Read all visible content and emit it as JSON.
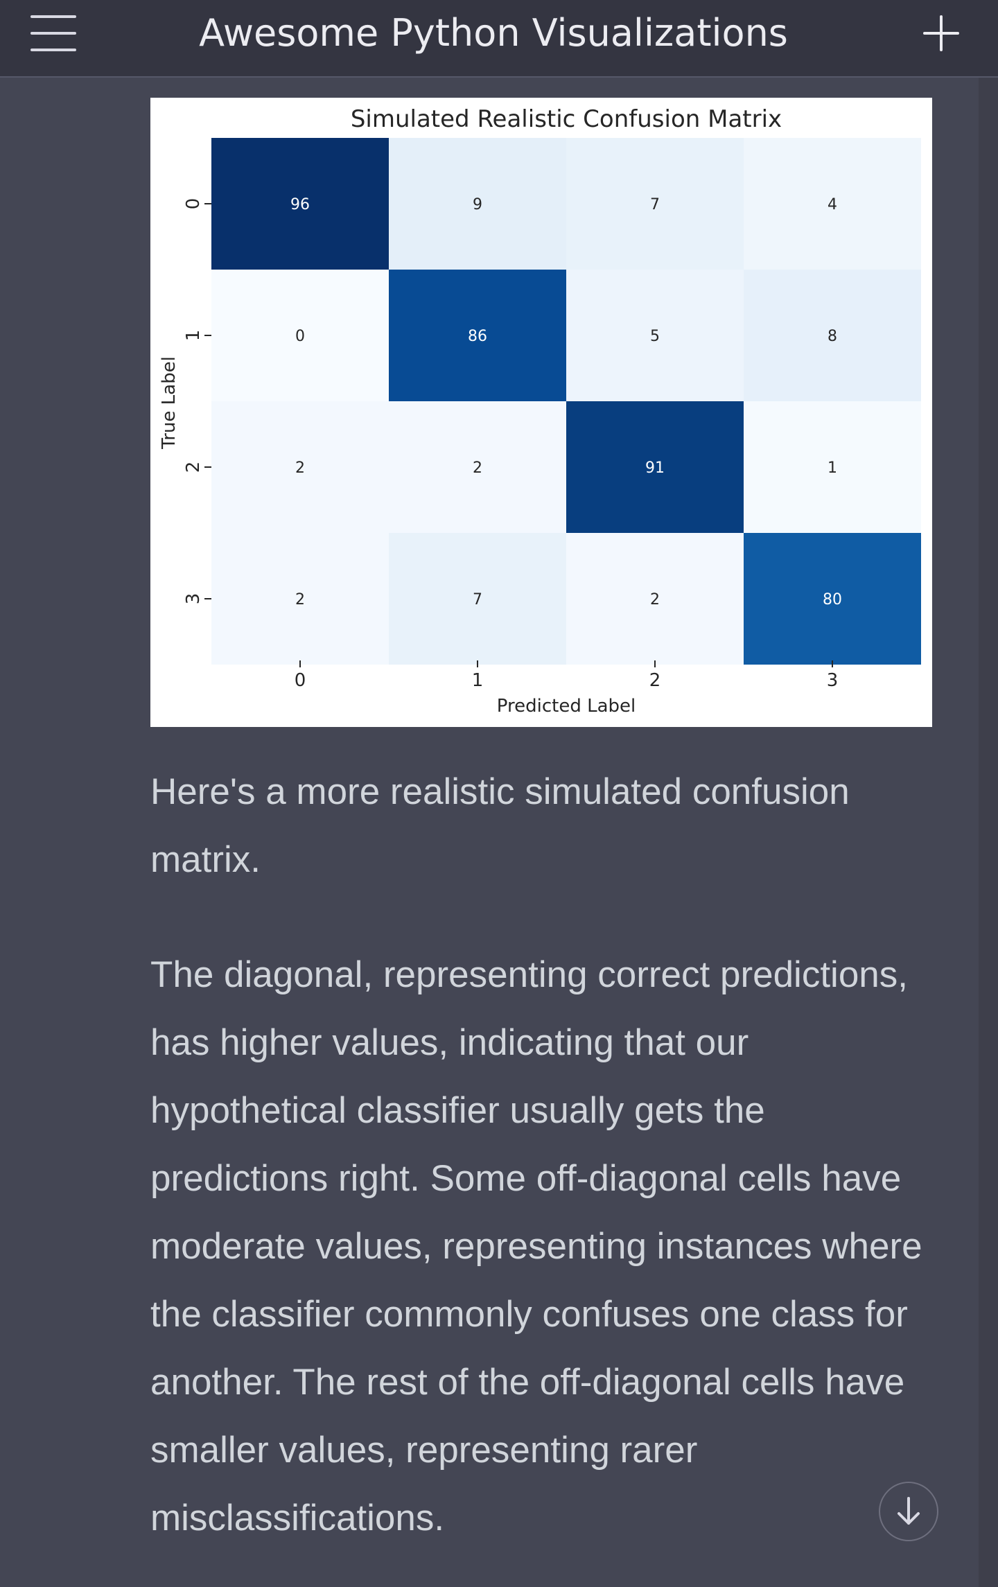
{
  "header": {
    "title": "Awesome Python Visualizations",
    "menu_icon": "hamburger-menu-icon",
    "new_chat_icon": "plus-icon"
  },
  "chart_data": {
    "type": "heatmap",
    "title": "Simulated Realistic Confusion Matrix",
    "xlabel": "Predicted Label",
    "ylabel": "True Label",
    "x_categories": [
      "0",
      "1",
      "2",
      "3"
    ],
    "y_categories": [
      "0",
      "1",
      "2",
      "3"
    ],
    "values": [
      [
        96,
        9,
        7,
        4
      ],
      [
        0,
        86,
        5,
        8
      ],
      [
        2,
        2,
        91,
        1
      ],
      [
        2,
        7,
        2,
        80
      ]
    ],
    "colormap": "Blues",
    "colorbar": false,
    "vmin": 0,
    "vmax": 96
  },
  "message": {
    "paragraph_1": "Here's a more realistic simulated confusion matrix.",
    "paragraph_2": "The diagonal, representing correct predictions, has higher values, indicating that our hypothetical classifier usually gets the predictions right. Some off-diagonal cells have moderate values, representing instances where the classifier commonly confuses one class for another. The rest of the off-diagonal cells have smaller values, representing rarer misclassifications."
  },
  "controls": {
    "scroll_down_icon": "arrow-down-icon"
  },
  "colors": {
    "header_bg": "#343541",
    "page_bg": "#444654",
    "text": "#d1d5db",
    "title_text": "#ececf1"
  }
}
